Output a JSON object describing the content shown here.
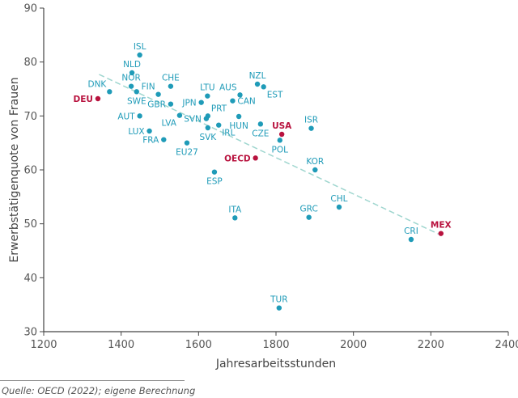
{
  "source_note": "Quelle: OECD (2022); eigene Berechnung",
  "colors": {
    "country": "#1f9bb8",
    "highlight": "#b8123e",
    "trend": "#9fd6cf",
    "axis": "#444444"
  },
  "chart_data": {
    "type": "scatter",
    "xlabel": "Jahresarbeitsstunden",
    "ylabel": "Erwerbstätigenquote von Frauen",
    "xlim": [
      1200,
      2400
    ],
    "ylim": [
      30,
      90
    ],
    "xticks": [
      1200,
      1400,
      1600,
      1800,
      2000,
      2200,
      2400
    ],
    "yticks": [
      30,
      40,
      50,
      60,
      70,
      80,
      90
    ],
    "grid": false,
    "trendline": [
      [
        1343,
        77.7
      ],
      [
        2220,
        48.1
      ]
    ],
    "points": [
      {
        "label": "ISL",
        "x": 1448,
        "y": 81.3,
        "highlight": false,
        "pos": "n"
      },
      {
        "label": "NLD",
        "x": 1428,
        "y": 78.0,
        "highlight": false,
        "pos": "n"
      },
      {
        "label": "NOR",
        "x": 1426,
        "y": 75.5,
        "highlight": false,
        "pos": "n"
      },
      {
        "label": "DNK",
        "x": 1370,
        "y": 74.5,
        "highlight": false,
        "pos": "nw"
      },
      {
        "label": "SWE",
        "x": 1440,
        "y": 74.5,
        "highlight": false,
        "pos": "s"
      },
      {
        "label": "FIN",
        "x": 1496,
        "y": 74.0,
        "highlight": false,
        "pos": "nw"
      },
      {
        "label": "CHE",
        "x": 1528,
        "y": 75.5,
        "highlight": false,
        "pos": "n"
      },
      {
        "label": "DEU",
        "x": 1340,
        "y": 73.2,
        "highlight": true,
        "pos": "w"
      },
      {
        "label": "GBR",
        "x": 1528,
        "y": 72.2,
        "highlight": false,
        "pos": "w"
      },
      {
        "label": "LTU",
        "x": 1623,
        "y": 73.7,
        "highlight": false,
        "pos": "n"
      },
      {
        "label": "JPN",
        "x": 1607,
        "y": 72.5,
        "highlight": false,
        "pos": "w"
      },
      {
        "label": "AUS",
        "x": 1707,
        "y": 73.9,
        "highlight": false,
        "pos": "nw"
      },
      {
        "label": "NZL",
        "x": 1752,
        "y": 75.9,
        "highlight": false,
        "pos": "n"
      },
      {
        "label": "EST",
        "x": 1768,
        "y": 75.4,
        "highlight": false,
        "pos": "se"
      },
      {
        "label": "CAN",
        "x": 1688,
        "y": 72.8,
        "highlight": false,
        "pos": "e"
      },
      {
        "label": "AUT",
        "x": 1448,
        "y": 70.0,
        "highlight": false,
        "pos": "w"
      },
      {
        "label": "PRT",
        "x": 1624,
        "y": 70.0,
        "highlight": false,
        "pos": "ne"
      },
      {
        "label": "LVA",
        "x": 1551,
        "y": 70.1,
        "highlight": false,
        "pos": "sw"
      },
      {
        "label": "SVN",
        "x": 1620,
        "y": 69.5,
        "highlight": false,
        "pos": "w"
      },
      {
        "label": "HUN",
        "x": 1704,
        "y": 69.9,
        "highlight": false,
        "pos": "s"
      },
      {
        "label": "LUX",
        "x": 1473,
        "y": 67.2,
        "highlight": false,
        "pos": "w"
      },
      {
        "label": "IRL",
        "x": 1652,
        "y": 68.3,
        "highlight": false,
        "pos": "se"
      },
      {
        "label": "SVK",
        "x": 1624,
        "y": 67.8,
        "highlight": false,
        "pos": "s"
      },
      {
        "label": "CZE",
        "x": 1760,
        "y": 68.5,
        "highlight": false,
        "pos": "s"
      },
      {
        "label": "ISR",
        "x": 1891,
        "y": 67.7,
        "highlight": false,
        "pos": "n"
      },
      {
        "label": "USA",
        "x": 1815,
        "y": 66.6,
        "highlight": true,
        "pos": "n"
      },
      {
        "label": "FRA",
        "x": 1510,
        "y": 65.6,
        "highlight": false,
        "pos": "w"
      },
      {
        "label": "EU27",
        "x": 1570,
        "y": 65.0,
        "highlight": false,
        "pos": "s"
      },
      {
        "label": "POL",
        "x": 1810,
        "y": 65.5,
        "highlight": false,
        "pos": "s"
      },
      {
        "label": "OECD",
        "x": 1747,
        "y": 62.2,
        "highlight": true,
        "pos": "w"
      },
      {
        "label": "KOR",
        "x": 1901,
        "y": 60.0,
        "highlight": false,
        "pos": "n"
      },
      {
        "label": "ESP",
        "x": 1641,
        "y": 59.6,
        "highlight": false,
        "pos": "s"
      },
      {
        "label": "CHL",
        "x": 1963,
        "y": 53.1,
        "highlight": false,
        "pos": "n"
      },
      {
        "label": "GRC",
        "x": 1885,
        "y": 51.2,
        "highlight": false,
        "pos": "n"
      },
      {
        "label": "ITA",
        "x": 1694,
        "y": 51.1,
        "highlight": false,
        "pos": "n"
      },
      {
        "label": "MEX",
        "x": 2226,
        "y": 48.2,
        "highlight": true,
        "pos": "n"
      },
      {
        "label": "CRI",
        "x": 2149,
        "y": 47.1,
        "highlight": false,
        "pos": "n"
      },
      {
        "label": "TUR",
        "x": 1808,
        "y": 34.4,
        "highlight": false,
        "pos": "n"
      }
    ]
  }
}
